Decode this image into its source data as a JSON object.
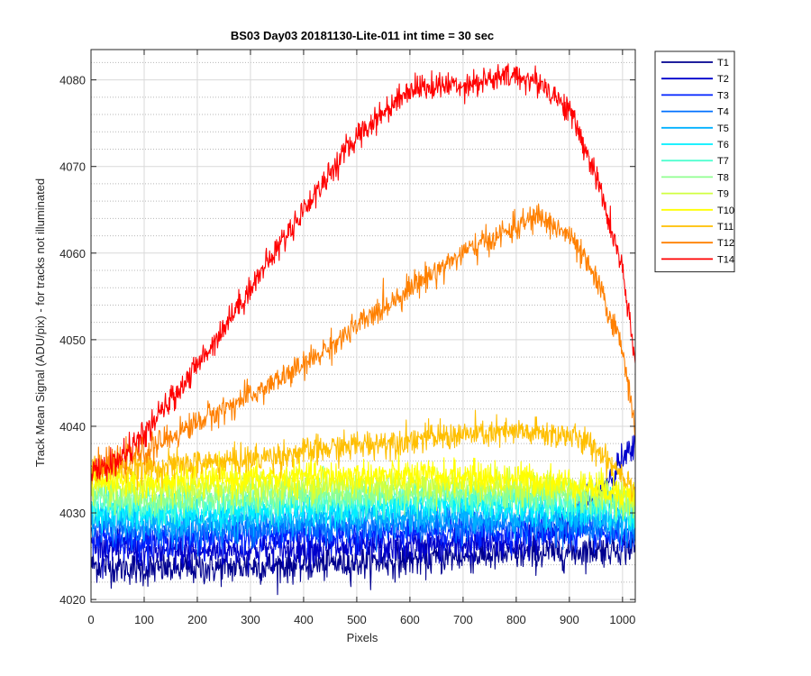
{
  "chart_data": {
    "type": "line",
    "title": "BS03 Day03 20181130-Lite-011 int time = 30 sec",
    "xlabel": "Pixels",
    "ylabel": "Track Mean Signal (ADU/pix) - for tracks not illuminated",
    "xlim": [
      0,
      1024
    ],
    "ylim": [
      4019.7,
      4083.5
    ],
    "x_ticks": [
      0,
      100,
      200,
      300,
      400,
      500,
      600,
      700,
      800,
      900,
      1000
    ],
    "y_ticks": [
      4020,
      4030,
      4040,
      4050,
      4060,
      4070,
      4080
    ],
    "y_minor_step": 2,
    "grid": true,
    "legend_position": "outside-top-right",
    "series": [
      {
        "name": "T1",
        "color": "#00008f",
        "noise": 1.6,
        "x": [
          0,
          100,
          200,
          300,
          400,
          500,
          600,
          700,
          800,
          900,
          950,
          1000,
          1024
        ],
        "y": [
          4024.0,
          4023.5,
          4023.6,
          4023.8,
          4024.0,
          4024.3,
          4024.6,
          4025.0,
          4025.2,
          4025.5,
          4025.8,
          4026.0,
          4026.0
        ]
      },
      {
        "name": "T2",
        "color": "#0000cc",
        "noise": 1.6,
        "x": [
          0,
          100,
          200,
          300,
          400,
          500,
          600,
          700,
          800,
          900,
          950,
          1000,
          1024
        ],
        "y": [
          4026.5,
          4025.5,
          4025.5,
          4025.8,
          4026.0,
          4026.0,
          4026.2,
          4026.3,
          4026.5,
          4028.5,
          4032.0,
          4036.0,
          4037.5
        ]
      },
      {
        "name": "T3",
        "color": "#0022ff",
        "noise": 1.5,
        "x": [
          0,
          100,
          200,
          300,
          400,
          500,
          600,
          700,
          800,
          900,
          1000,
          1024
        ],
        "y": [
          4027.5,
          4026.8,
          4027.0,
          4027.3,
          4027.5,
          4027.5,
          4027.7,
          4027.7,
          4027.8,
          4027.8,
          4027.2,
          4026.5
        ]
      },
      {
        "name": "T4",
        "color": "#0070ff",
        "noise": 1.5,
        "x": [
          0,
          100,
          200,
          300,
          400,
          500,
          600,
          700,
          800,
          900,
          1000,
          1024
        ],
        "y": [
          4028.5,
          4027.8,
          4028.0,
          4028.2,
          4028.4,
          4028.5,
          4028.6,
          4028.6,
          4028.6,
          4028.5,
          4028.0,
          4027.5
        ]
      },
      {
        "name": "T5",
        "color": "#00b0ff",
        "noise": 1.5,
        "x": [
          0,
          100,
          200,
          300,
          400,
          500,
          600,
          700,
          800,
          900,
          1000,
          1024
        ],
        "y": [
          4029.5,
          4028.8,
          4029.0,
          4029.2,
          4029.4,
          4029.5,
          4029.6,
          4029.6,
          4029.6,
          4029.5,
          4029.0,
          4028.5
        ]
      },
      {
        "name": "T6",
        "color": "#00efff",
        "noise": 1.5,
        "x": [
          0,
          100,
          200,
          300,
          400,
          500,
          600,
          700,
          800,
          900,
          1000,
          1024
        ],
        "y": [
          4030.5,
          4029.8,
          4030.0,
          4030.3,
          4030.5,
          4030.6,
          4030.8,
          4030.8,
          4030.7,
          4030.5,
          4030.0,
          4029.5
        ]
      },
      {
        "name": "T7",
        "color": "#50ffd0",
        "noise": 1.5,
        "x": [
          0,
          100,
          200,
          300,
          400,
          500,
          600,
          700,
          800,
          900,
          1000,
          1024
        ],
        "y": [
          4031.3,
          4030.8,
          4031.0,
          4031.3,
          4031.5,
          4031.6,
          4031.8,
          4031.8,
          4031.6,
          4031.3,
          4030.7,
          4030.2
        ]
      },
      {
        "name": "T8",
        "color": "#90ff90",
        "noise": 1.5,
        "x": [
          0,
          100,
          200,
          300,
          400,
          500,
          600,
          700,
          800,
          900,
          1000,
          1024
        ],
        "y": [
          4032.0,
          4031.5,
          4031.8,
          4032.0,
          4032.2,
          4032.3,
          4032.4,
          4032.4,
          4032.2,
          4032.0,
          4031.3,
          4030.8
        ]
      },
      {
        "name": "T9",
        "color": "#d0ff40",
        "noise": 1.5,
        "x": [
          0,
          100,
          200,
          300,
          400,
          500,
          600,
          700,
          800,
          900,
          1000,
          1024
        ],
        "y": [
          4033.0,
          4032.5,
          4032.8,
          4033.0,
          4033.2,
          4033.3,
          4033.3,
          4033.3,
          4033.1,
          4032.8,
          4032.0,
          4031.5
        ]
      },
      {
        "name": "T10",
        "color": "#ffff00",
        "noise": 1.5,
        "x": [
          0,
          100,
          200,
          300,
          400,
          500,
          600,
          700,
          800,
          900,
          1000,
          1024
        ],
        "y": [
          4034.0,
          4033.5,
          4033.8,
          4034.0,
          4034.2,
          4034.3,
          4034.3,
          4034.2,
          4034.0,
          4033.5,
          4032.5,
          4032.0
        ]
      },
      {
        "name": "T11",
        "color": "#ffbf00",
        "noise": 1.4,
        "x": [
          0,
          100,
          200,
          300,
          400,
          500,
          600,
          700,
          800,
          900,
          950,
          1000,
          1024
        ],
        "y": [
          4035.0,
          4035.2,
          4035.7,
          4036.2,
          4037.0,
          4037.8,
          4038.5,
          4039.0,
          4039.3,
          4039.0,
          4037.5,
          4034.5,
          4032.8
        ]
      },
      {
        "name": "T12",
        "color": "#ff8000",
        "noise": 1.3,
        "x": [
          0,
          100,
          200,
          300,
          400,
          500,
          600,
          700,
          800,
          840,
          900,
          950,
          1000,
          1024
        ],
        "y": [
          4035.0,
          4037.0,
          4040.5,
          4043.5,
          4047.0,
          4051.5,
          4056.0,
          4060.0,
          4063.0,
          4064.3,
          4062.0,
          4057.0,
          4049.0,
          4040.0
        ]
      },
      {
        "name": "T14",
        "color": "#ff0000",
        "noise": 1.3,
        "x": [
          0,
          50,
          100,
          200,
          300,
          400,
          500,
          600,
          700,
          800,
          850,
          900,
          950,
          1000,
          1024
        ],
        "y": [
          4034.5,
          4036.0,
          4039.0,
          4047.0,
          4056.0,
          4065.0,
          4073.5,
          4079.0,
          4079.5,
          4080.5,
          4079.5,
          4076.5,
          4069.0,
          4058.0,
          4047.0
        ]
      }
    ]
  }
}
